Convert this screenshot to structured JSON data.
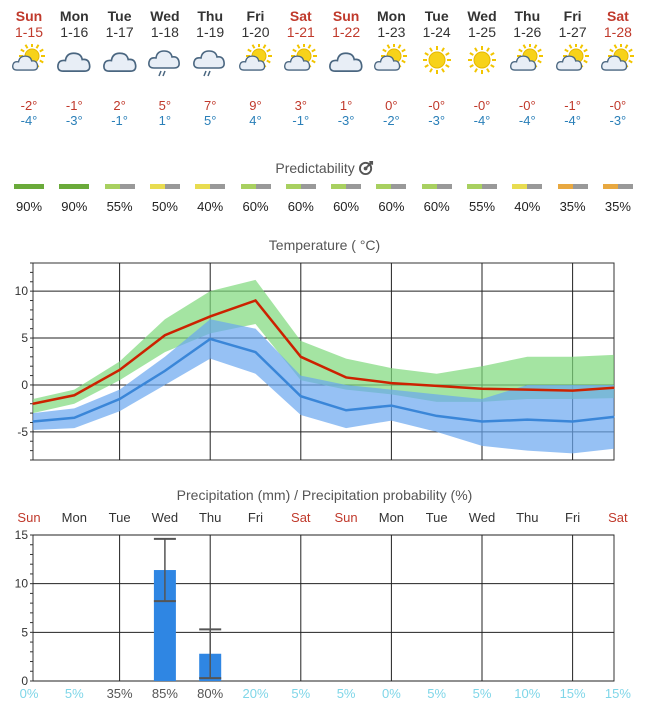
{
  "days": [
    {
      "name": "Sun",
      "date": "1-15",
      "weekend": true,
      "icon": "sun-cloud-icon",
      "hi": "-2°",
      "lo": "-4°",
      "pred": "90%",
      "pred_color": [
        "#6aaa3a",
        "#6aaa3a"
      ]
    },
    {
      "name": "Mon",
      "date": "1-16",
      "weekend": false,
      "icon": "cloud-icon",
      "hi": "-1°",
      "lo": "-3°",
      "pred": "90%",
      "pred_color": [
        "#6aaa3a",
        "#6aaa3a"
      ]
    },
    {
      "name": "Tue",
      "date": "1-17",
      "weekend": false,
      "icon": "cloud-icon",
      "hi": "2°",
      "lo": "-1°",
      "pred": "55%",
      "pred_color": [
        "#a8d060",
        "#999999"
      ]
    },
    {
      "name": "Wed",
      "date": "1-18",
      "weekend": false,
      "icon": "cloud-rain-icon",
      "hi": "5°",
      "lo": "1°",
      "pred": "50%",
      "pred_color": [
        "#e8dc50",
        "#999999"
      ]
    },
    {
      "name": "Thu",
      "date": "1-19",
      "weekend": false,
      "icon": "cloud-rain-icon",
      "hi": "7°",
      "lo": "5°",
      "pred": "40%",
      "pred_color": [
        "#e8dc50",
        "#999999"
      ]
    },
    {
      "name": "Fri",
      "date": "1-20",
      "weekend": false,
      "icon": "sun-cloud-icon",
      "hi": "9°",
      "lo": "4°",
      "pred": "60%",
      "pred_color": [
        "#a8d060",
        "#999999"
      ]
    },
    {
      "name": "Sat",
      "date": "1-21",
      "weekend": true,
      "icon": "sun-cloud-icon",
      "hi": "3°",
      "lo": "-1°",
      "pred": "60%",
      "pred_color": [
        "#a8d060",
        "#999999"
      ]
    },
    {
      "name": "Sun",
      "date": "1-22",
      "weekend": true,
      "icon": "cloud-icon",
      "hi": "1°",
      "lo": "-3°",
      "pred": "60%",
      "pred_color": [
        "#a8d060",
        "#999999"
      ]
    },
    {
      "name": "Mon",
      "date": "1-23",
      "weekend": false,
      "icon": "sun-cloud-icon",
      "hi": "0°",
      "lo": "-2°",
      "pred": "60%",
      "pred_color": [
        "#a8d060",
        "#999999"
      ]
    },
    {
      "name": "Tue",
      "date": "1-24",
      "weekend": false,
      "icon": "sun-icon",
      "hi": "-0°",
      "lo": "-3°",
      "pred": "60%",
      "pred_color": [
        "#a8d060",
        "#999999"
      ]
    },
    {
      "name": "Wed",
      "date": "1-25",
      "weekend": false,
      "icon": "sun-icon",
      "hi": "-0°",
      "lo": "-4°",
      "pred": "55%",
      "pred_color": [
        "#a8d060",
        "#999999"
      ]
    },
    {
      "name": "Thu",
      "date": "1-26",
      "weekend": false,
      "icon": "sun-cloud-icon",
      "hi": "-0°",
      "lo": "-4°",
      "pred": "40%",
      "pred_color": [
        "#e8dc50",
        "#999999"
      ]
    },
    {
      "name": "Fri",
      "date": "1-27",
      "weekend": false,
      "icon": "sun-cloud-icon",
      "hi": "-1°",
      "lo": "-4°",
      "pred": "35%",
      "pred_color": [
        "#e8a840",
        "#999999"
      ]
    },
    {
      "name": "Sat",
      "date": "1-28",
      "weekend": true,
      "icon": "sun-cloud-icon",
      "hi": "-0°",
      "lo": "-3°",
      "pred": "35%",
      "pred_color": [
        "#e8a840",
        "#999999"
      ]
    }
  ],
  "predictability_title": "Predictability",
  "temperature_title": "Temperature ( °C)",
  "precip_title": "Precipitation (mm) / Precipitation probability (%)",
  "chart_data": [
    {
      "type": "line",
      "title": "Temperature ( °C)",
      "ylim": [
        -8,
        13
      ],
      "yticks": [
        10,
        5,
        0,
        -5
      ],
      "series": [
        {
          "values": [
            -2,
            -1.1,
            1.6,
            5.3,
            7.3,
            9,
            3,
            0.8,
            0.2,
            -0.1,
            -0.4,
            -0.5,
            -0.6,
            -0.3
          ],
          "color": "#cc2200"
        },
        {
          "values": [
            -3.9,
            -3.5,
            -1.5,
            1.5,
            4.9,
            3.5,
            -1.2,
            -2.7,
            -2.2,
            -3.3,
            -3.9,
            -3.7,
            -3.9,
            -3.4
          ],
          "color": "#3a86d8"
        }
      ],
      "bands": [
        {
          "upper": [
            -1.5,
            -0.5,
            2.5,
            7,
            10,
            11.2,
            4.7,
            2.8,
            1.8,
            1.2,
            2,
            3,
            3,
            3.2
          ],
          "lower": [
            -3,
            -2,
            0.5,
            3.5,
            5.5,
            6.5,
            0.5,
            -0.5,
            -1,
            -1.8,
            -1.8,
            -1.5,
            -1.5,
            -1.4
          ],
          "color": "#7dd87a"
        },
        {
          "upper": [
            -3,
            -2.5,
            -0.5,
            3,
            7,
            6,
            1,
            0,
            -0.5,
            -1,
            -1.5,
            0,
            0,
            0
          ],
          "lower": [
            -4.8,
            -4.6,
            -2.8,
            0,
            2.8,
            1.2,
            -3.2,
            -4.6,
            -3.8,
            -5,
            -6.5,
            -7,
            -7.3,
            -6.8
          ],
          "color": "#6aa6ef"
        }
      ]
    },
    {
      "type": "bar",
      "title": "Precipitation (mm) / Precipitation probability (%)",
      "ylim": [
        0,
        15
      ],
      "yticks": [
        15,
        10,
        5,
        0
      ],
      "values": [
        0,
        0,
        0,
        11.4,
        2.8,
        0,
        0,
        0,
        0,
        0,
        0,
        0,
        0,
        0
      ],
      "error_high": [
        null,
        null,
        null,
        14.6,
        5.3,
        null,
        null,
        null,
        null,
        null,
        null,
        null,
        null,
        null
      ],
      "error_low": [
        null,
        null,
        null,
        8.2,
        0.3,
        null,
        null,
        null,
        null,
        null,
        null,
        null,
        null,
        null
      ],
      "probability": [
        "0%",
        "5%",
        "35%",
        "85%",
        "80%",
        "20%",
        "5%",
        "5%",
        "0%",
        "5%",
        "5%",
        "10%",
        "15%",
        "15%"
      ],
      "bar_color": "#2f86e3"
    }
  ]
}
